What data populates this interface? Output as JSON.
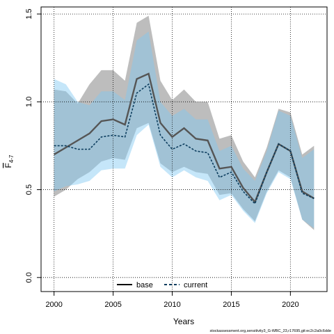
{
  "chart_data": {
    "type": "line",
    "xlabel": "Years",
    "ylabel_main": "F",
    "ylabel_sub": "4-7",
    "xlim": [
      1998.9,
      2023.1
    ],
    "ylim": [
      -0.08,
      1.54
    ],
    "xticks": [
      2000,
      2005,
      2010,
      2015,
      2020
    ],
    "yticks": [
      0.0,
      0.5,
      1.0,
      1.5
    ],
    "ytick_labels": [
      "0.0",
      "0.5",
      "1.0",
      "1.5"
    ],
    "grid": true,
    "legend_position": "bottom",
    "caption": "stockassessment.org,sensitivity3_G-WBC_23,r17695,git:ec2c2a0c6dde",
    "x": [
      2000,
      2001,
      2002,
      2003,
      2004,
      2005,
      2006,
      2007,
      2008,
      2009,
      2010,
      2011,
      2012,
      2013,
      2014,
      2015,
      2016,
      2017,
      2018,
      2019,
      2020,
      2021,
      2022
    ],
    "series": [
      {
        "name": "base",
        "color": "#555555",
        "band_color": "#999999",
        "dash": "solid",
        "values": [
          0.7,
          0.74,
          0.78,
          0.82,
          0.89,
          0.9,
          0.87,
          1.13,
          1.16,
          0.88,
          0.8,
          0.85,
          0.79,
          0.78,
          0.62,
          0.63,
          0.51,
          0.43,
          0.6,
          0.76,
          0.72,
          0.49,
          0.45
        ],
        "lower": [
          0.46,
          0.5,
          0.56,
          0.6,
          0.66,
          0.68,
          0.67,
          0.85,
          0.88,
          0.65,
          0.6,
          0.63,
          0.6,
          0.59,
          0.47,
          0.48,
          0.39,
          0.32,
          0.49,
          0.61,
          0.57,
          0.33,
          0.27
        ],
        "upper": [
          1.07,
          1.06,
          0.99,
          1.1,
          1.18,
          1.18,
          1.12,
          1.45,
          1.49,
          1.12,
          1.01,
          1.07,
          1.0,
          1.0,
          0.79,
          0.81,
          0.66,
          0.57,
          0.74,
          0.96,
          0.94,
          0.7,
          0.75
        ]
      },
      {
        "name": "current",
        "color": "#0b3c5d",
        "band_color": "#7ec8f2",
        "dash": "dashed",
        "values": [
          0.75,
          0.75,
          0.73,
          0.73,
          0.8,
          0.81,
          0.8,
          1.05,
          1.1,
          0.81,
          0.73,
          0.76,
          0.72,
          0.71,
          0.57,
          0.6,
          0.49,
          0.42,
          0.6,
          0.76,
          0.72,
          0.48,
          0.45
        ],
        "lower": [
          0.49,
          0.52,
          0.53,
          0.55,
          0.61,
          0.62,
          0.62,
          0.81,
          0.87,
          0.63,
          0.57,
          0.61,
          0.57,
          0.55,
          0.44,
          0.47,
          0.38,
          0.31,
          0.48,
          0.6,
          0.56,
          0.33,
          0.28
        ],
        "upper": [
          1.13,
          1.1,
          1.0,
          0.98,
          1.06,
          1.06,
          1.01,
          1.35,
          1.4,
          1.0,
          0.92,
          0.96,
          0.9,
          0.9,
          0.72,
          0.75,
          0.62,
          0.55,
          0.72,
          0.95,
          0.92,
          0.68,
          0.73
        ]
      }
    ]
  }
}
